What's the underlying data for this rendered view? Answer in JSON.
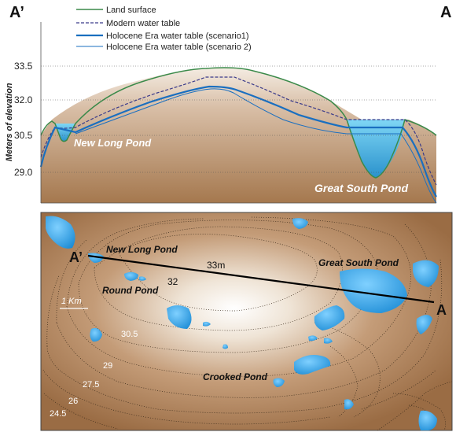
{
  "cross_section": {
    "left_marker": "A’",
    "right_marker": "A",
    "y_axis_label": "Meters of elevation",
    "y_ticks": [
      "33.5",
      "32.0",
      "30.5",
      "29.0"
    ],
    "legend": [
      "Land surface",
      "Modern water table",
      "Holocene Era water table (scenario1)",
      "Holocene Era water table (scenario 2)"
    ],
    "ponds": [
      "New Long Pond",
      "Great South Pond"
    ],
    "colors": {
      "land": "#c9a98a",
      "land_outline": "#3b8a4a",
      "water": "#2fa0e0",
      "modern_table": "#3a3a8a",
      "holocene": "#1a6fc0"
    }
  },
  "map": {
    "section_start": "A’",
    "section_end": "A",
    "scale_label": "1 Km",
    "ponds": [
      "New Long Pond",
      "Round Pond",
      "Great South Pond",
      "Crooked Pond"
    ],
    "contour_labels": [
      "33m",
      "32",
      "30.5",
      "29",
      "27.5",
      "26",
      "24.5"
    ]
  }
}
